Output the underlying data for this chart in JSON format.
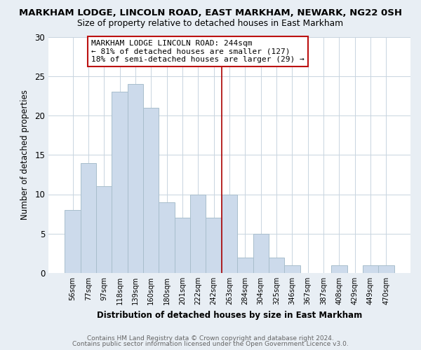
{
  "title": "MARKHAM LODGE, LINCOLN ROAD, EAST MARKHAM, NEWARK, NG22 0SH",
  "subtitle": "Size of property relative to detached houses in East Markham",
  "xlabel": "Distribution of detached houses by size in East Markham",
  "ylabel": "Number of detached properties",
  "bar_color": "#ccdaeb",
  "bar_edge_color": "#a8becc",
  "categories": [
    "56sqm",
    "77sqm",
    "97sqm",
    "118sqm",
    "139sqm",
    "160sqm",
    "180sqm",
    "201sqm",
    "222sqm",
    "242sqm",
    "263sqm",
    "284sqm",
    "304sqm",
    "325sqm",
    "346sqm",
    "367sqm",
    "387sqm",
    "408sqm",
    "429sqm",
    "449sqm",
    "470sqm"
  ],
  "values": [
    8,
    14,
    11,
    23,
    24,
    21,
    9,
    7,
    10,
    7,
    10,
    2,
    5,
    2,
    1,
    0,
    0,
    1,
    0,
    1,
    1
  ],
  "vline_x": 9.5,
  "vline_color": "#aa0000",
  "annotation_line1": "MARKHAM LODGE LINCOLN ROAD: 244sqm",
  "annotation_line2": "← 81% of detached houses are smaller (127)",
  "annotation_line3": "18% of semi-detached houses are larger (29) →",
  "ylim": [
    0,
    30
  ],
  "yticks": [
    0,
    5,
    10,
    15,
    20,
    25,
    30
  ],
  "footer1": "Contains HM Land Registry data © Crown copyright and database right 2024.",
  "footer2": "Contains public sector information licensed under the Open Government Licence v3.0.",
  "background_color": "#e8eef4",
  "plot_background": "#ffffff",
  "grid_color": "#c8d4e0"
}
